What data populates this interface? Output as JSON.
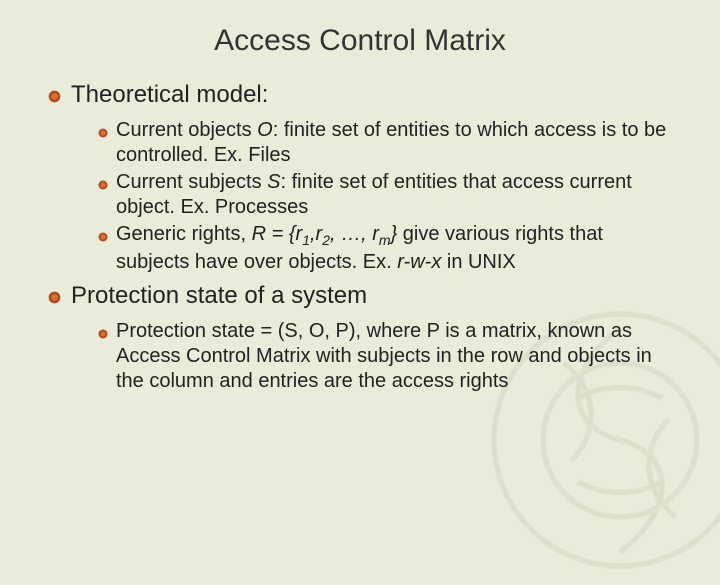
{
  "slide": {
    "title": "Access Control Matrix",
    "background_color": "#e8ecd8",
    "title_fontsize": 30,
    "level1_fontsize": 24,
    "level2_fontsize": 20,
    "text_color": "#222222",
    "bullet_colors": {
      "outer": "#b04a28",
      "inner": "#d8742c"
    },
    "sections": [
      {
        "heading": "Theoretical model:",
        "items": [
          {
            "text_parts": [
              "Current objects ",
              "O",
              ": finite set of entities to which access is to be controlled. Ex. Files"
            ],
            "italics": [
              false,
              true,
              false
            ]
          },
          {
            "text_parts": [
              "Current subjects ",
              "S",
              ": finite set of entities that access current object. Ex. Processes"
            ],
            "italics": [
              false,
              true,
              false
            ]
          },
          {
            "text_parts": [
              "Generic rights, ",
              "R = {r",
              "1",
              ",r",
              "2",
              ", …, r",
              "m",
              "}",
              " give various rights that subjects have over objects. Ex. ",
              "r-w-x",
              " in UNIX"
            ],
            "italics": [
              false,
              true,
              "sub",
              true,
              "sub",
              true,
              "sub",
              true,
              false,
              true,
              false
            ]
          }
        ]
      },
      {
        "heading": "Protection state of a system",
        "items": [
          {
            "text_parts": [
              "Protection state = (S, O, P), where P is a matrix, known as Access Control Matrix with subjects in the row and objects in the column and entries are the access rights"
            ],
            "italics": [
              false
            ]
          }
        ]
      }
    ]
  }
}
